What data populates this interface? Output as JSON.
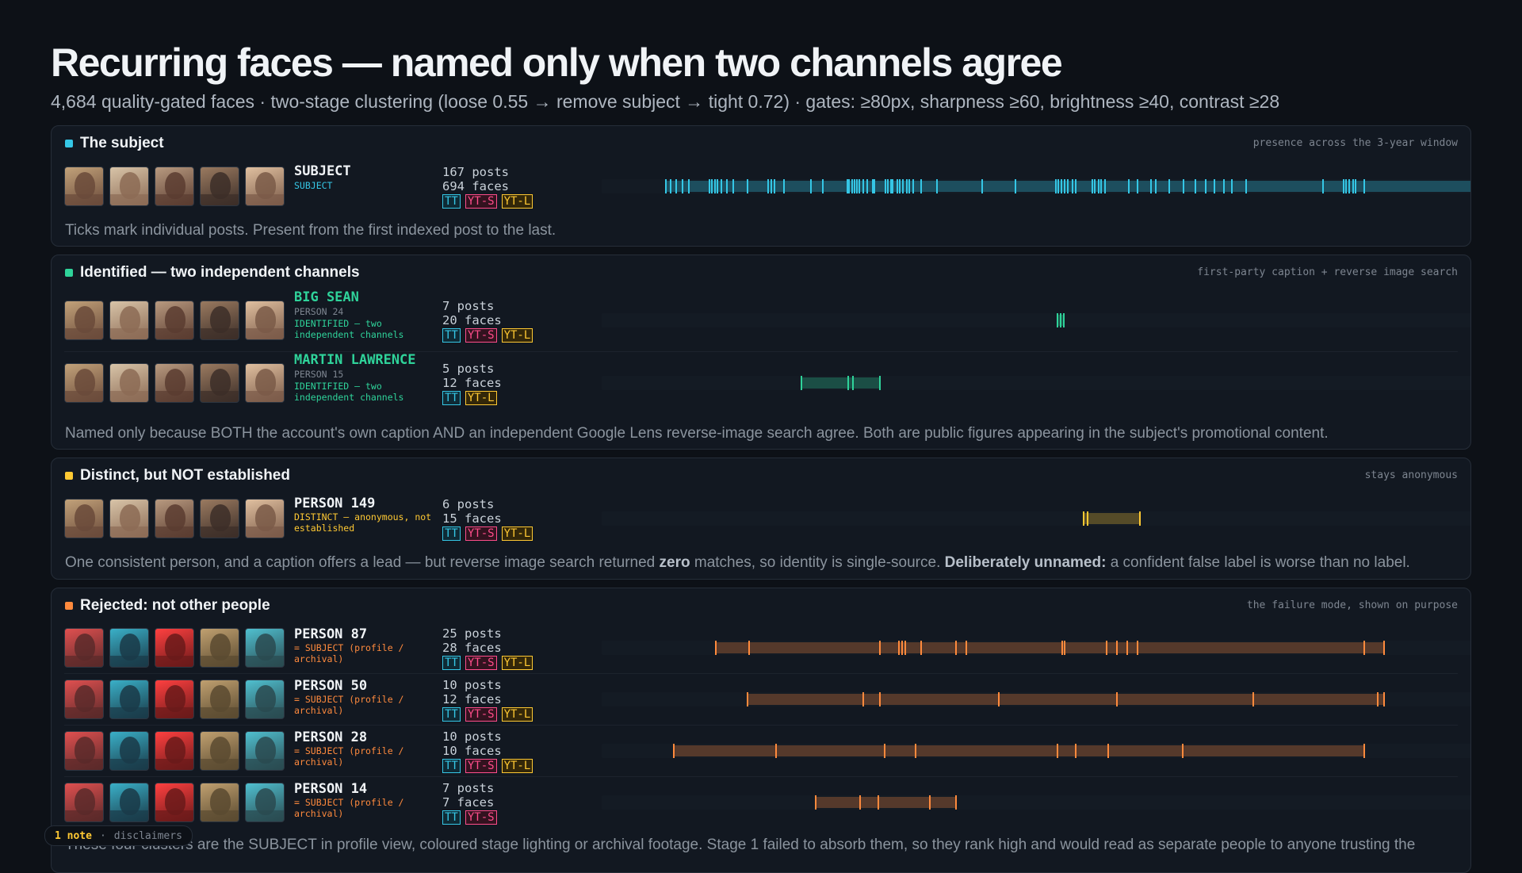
{
  "header": {
    "title": "Recurring faces — named only when two channels agree",
    "subtitle": "4,684 quality-gated faces · two-stage clustering (loose 0.55 → remove subject → tight 0.72) · gates: ≥80px, sharpness ≥60, brightness ≥40, contrast ≥28"
  },
  "colors": {
    "subject": "#35c7e6",
    "identified": "#2fd39a",
    "distinct": "#ffc933",
    "rejected": "#ff8a3d",
    "tt": "#35c7e6",
    "yt_s": "#ff4d8b",
    "yt_l": "#ffc933"
  },
  "sections": {
    "subject": {
      "title": "The subject",
      "note": "presence across the 3-year window",
      "footer": "Ticks mark individual posts. Present from the first indexed post to the last.",
      "rows": [
        {
          "name": "SUBJECT",
          "label": "SUBJECT",
          "desc": "",
          "posts": "167 posts",
          "faces": "694 faces",
          "tags": [
            "TT",
            "YT-S",
            "YT-L"
          ],
          "timeline_start": 0.07,
          "timeline_end": 0.995,
          "ticks": [
            0.07,
            0.075,
            0.081,
            0.088,
            0.095,
            0.118,
            0.121,
            0.124,
            0.127,
            0.131,
            0.137,
            0.144,
            0.16,
            0.183,
            0.186,
            0.19,
            0.2,
            0.23,
            0.243,
            0.27,
            0.272,
            0.275,
            0.278,
            0.281,
            0.283,
            0.288,
            0.292,
            0.298,
            0.3,
            0.312,
            0.315,
            0.318,
            0.32,
            0.325,
            0.328,
            0.331,
            0.336,
            0.338,
            0.343,
            0.351,
            0.369,
            0.419,
            0.455,
            0.5,
            0.503,
            0.506,
            0.51,
            0.513,
            0.518,
            0.522,
            0.54,
            0.543,
            0.547,
            0.55,
            0.554,
            0.58,
            0.59,
            0.605,
            0.61,
            0.625,
            0.641,
            0.654,
            0.665,
            0.675,
            0.685,
            0.694,
            0.71,
            0.795,
            0.817,
            0.82,
            0.823,
            0.828,
            0.83,
            0.84,
            0.995
          ]
        }
      ]
    },
    "identified": {
      "title": "Identified — two independent channels",
      "note": "first-party caption + reverse image search",
      "footer": "Named only because BOTH the account's own caption AND an independent Google Lens reverse-image search agree. Both are public figures appearing in the subject's promotional content.",
      "rows": [
        {
          "name": "BIG SEAN",
          "label": "PERSON 24",
          "desc": "IDENTIFIED — two independent channels",
          "posts": "7 posts",
          "faces": "20 faces",
          "tags": [
            "TT",
            "YT-S",
            "YT-L"
          ],
          "timeline_start": 0.502,
          "timeline_end": 0.51,
          "ticks": [
            0.502,
            0.505,
            0.509
          ]
        },
        {
          "name": "MARTIN LAWRENCE",
          "label": "PERSON 15",
          "desc": "IDENTIFIED — two independent channels",
          "posts": "5 posts",
          "faces": "12 faces",
          "tags": [
            "TT",
            "YT-L"
          ],
          "timeline_start": 0.219,
          "timeline_end": 0.306,
          "ticks": [
            0.219,
            0.271,
            0.276,
            0.306
          ]
        }
      ]
    },
    "distinct": {
      "title": "Distinct, but NOT established",
      "note": "stays anonymous",
      "footer_pre": "One consistent person, and a caption offers a lead — but reverse image search returned ",
      "footer_zero": "zero",
      "footer_mid": " matches, so identity is single-source. ",
      "footer_bold": "Deliberately unnamed:",
      "footer_post": " a confident false label is worse than no label.",
      "rows": [
        {
          "name": "PERSON 149",
          "label": "",
          "desc": "DISTINCT — anonymous, not established",
          "posts": "6 posts",
          "faces": "15 faces",
          "tags": [
            "TT",
            "YT-S",
            "YT-L"
          ],
          "timeline_start": 0.531,
          "timeline_end": 0.593,
          "ticks": [
            0.531,
            0.535,
            0.593
          ]
        }
      ]
    },
    "rejected": {
      "title": "Rejected: not other people",
      "note": "the failure mode, shown on purpose",
      "footer": "These four clusters are the SUBJECT in profile view, coloured stage lighting or archival footage. Stage 1 failed to absorb them, so they rank high and would read as separate people to anyone trusting the",
      "rows": [
        {
          "name": "PERSON 87",
          "label": "",
          "desc": "= SUBJECT (profile / archival)",
          "posts": "25 posts",
          "faces": "28 faces",
          "tags": [
            "TT",
            "YT-S",
            "YT-L"
          ],
          "timeline_start": 0.125,
          "timeline_end": 0.862,
          "ticks": [
            0.125,
            0.162,
            0.306,
            0.327,
            0.33,
            0.334,
            0.351,
            0.39,
            0.401,
            0.507,
            0.51,
            0.556,
            0.567,
            0.579,
            0.59,
            0.84,
            0.862
          ]
        },
        {
          "name": "PERSON 50",
          "label": "",
          "desc": "= SUBJECT (profile / archival)",
          "posts": "10 posts",
          "faces": "12 faces",
          "tags": [
            "TT",
            "YT-S",
            "YT-L"
          ],
          "timeline_start": 0.16,
          "timeline_end": 0.862,
          "ticks": [
            0.16,
            0.288,
            0.306,
            0.437,
            0.567,
            0.718,
            0.855,
            0.862
          ]
        },
        {
          "name": "PERSON 28",
          "label": "",
          "desc": "= SUBJECT (profile / archival)",
          "posts": "10 posts",
          "faces": "10 faces",
          "tags": [
            "TT",
            "YT-S",
            "YT-L"
          ],
          "timeline_start": 0.079,
          "timeline_end": 0.84,
          "ticks": [
            0.079,
            0.191,
            0.311,
            0.345,
            0.502,
            0.522,
            0.558,
            0.64,
            0.84
          ]
        },
        {
          "name": "PERSON 14",
          "label": "",
          "desc": "= SUBJECT (profile / archival)",
          "posts": "7 posts",
          "faces": "7 faces",
          "tags": [
            "TT",
            "YT-S"
          ],
          "timeline_start": 0.235,
          "timeline_end": 0.39,
          "ticks": [
            0.235,
            0.284,
            0.304,
            0.361,
            0.39
          ]
        }
      ]
    }
  },
  "toast": {
    "count": "1 note",
    "sep": "·",
    "label": "disclaimers"
  }
}
